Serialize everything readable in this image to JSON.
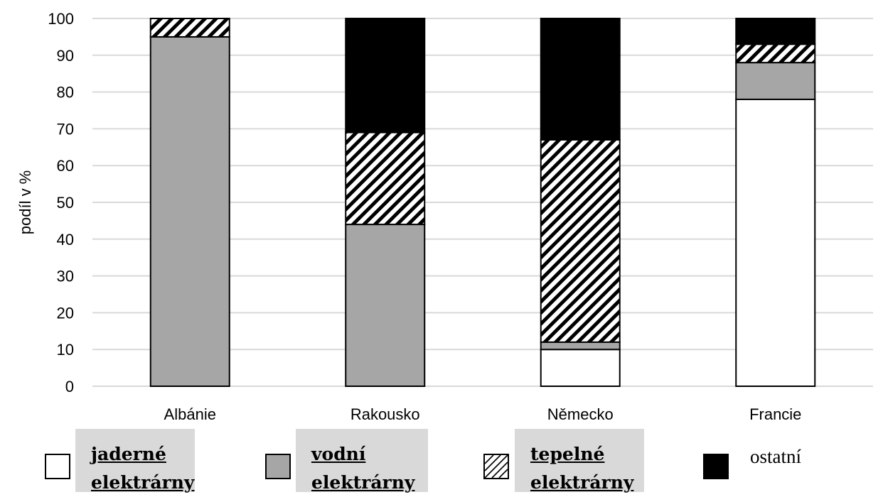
{
  "chart_data": {
    "type": "stacked-bar",
    "categories": [
      "Albánie",
      "Rakousko",
      "Německo",
      "Francie"
    ],
    "ylabel": "podíl v %",
    "xlabel": "",
    "ylim": [
      0,
      100
    ],
    "yticks": [
      0,
      10,
      20,
      30,
      40,
      50,
      60,
      70,
      80,
      90,
      100
    ],
    "grid": true,
    "legend_position": "bottom",
    "series": [
      {
        "name": "jaderné elektrárny",
        "fill": "white",
        "values": [
          0,
          0,
          10,
          78
        ]
      },
      {
        "name": "vodní elektrárny",
        "fill": "gray",
        "values": [
          95,
          44,
          2,
          10
        ]
      },
      {
        "name": "tepelné elektrárny",
        "fill": "hatch",
        "values": [
          5,
          25,
          55,
          5
        ]
      },
      {
        "name": "ostatní",
        "fill": "black",
        "values": [
          0,
          31,
          33,
          7
        ]
      }
    ],
    "colors": {
      "white": "#ffffff",
      "gray": "#a6a6a6",
      "black": "#000000",
      "grid": "#d9d9d9",
      "legend_box": "#d9d9d9"
    }
  },
  "legend": {
    "items": [
      {
        "label": "jaderné \nelektrárny"
      },
      {
        "label": "vodní \nelektrárny"
      },
      {
        "label": "tepelné \nelektrárny"
      },
      {
        "label": "ostatní"
      }
    ]
  }
}
